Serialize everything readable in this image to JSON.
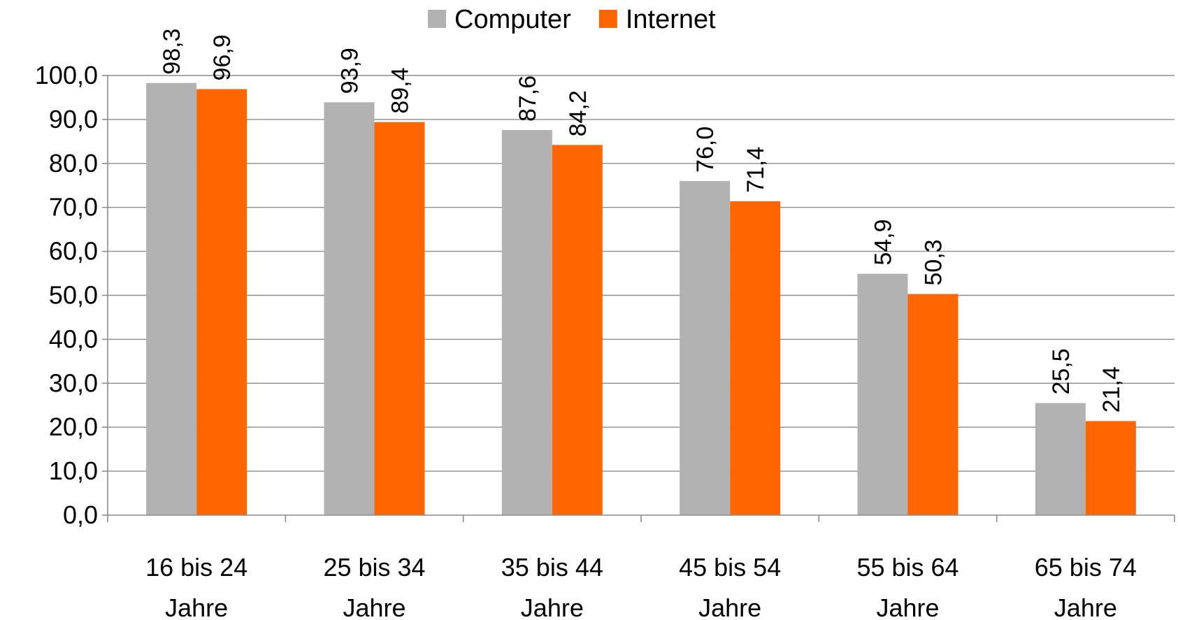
{
  "chart_data": {
    "type": "bar",
    "categories": [
      [
        "16 bis 24",
        "Jahre"
      ],
      [
        "25 bis 34",
        "Jahre"
      ],
      [
        "35 bis 44",
        "Jahre"
      ],
      [
        "45 bis 54",
        "Jahre"
      ],
      [
        "55 bis 64",
        "Jahre"
      ],
      [
        "65 bis 74",
        "Jahre"
      ]
    ],
    "series": [
      {
        "name": "Computer",
        "color": "#b2b2b2",
        "values": [
          98.3,
          93.9,
          87.6,
          76.0,
          54.9,
          25.5
        ],
        "labels": [
          "98,3",
          "93,9",
          "87,6",
          "76,0",
          "54,9",
          "25,5"
        ]
      },
      {
        "name": "Internet",
        "color": "#ff6600",
        "values": [
          96.9,
          89.4,
          84.2,
          71.4,
          50.3,
          21.4
        ],
        "labels": [
          "96,9",
          "89,4",
          "84,2",
          "71,4",
          "50,3",
          "21,4"
        ]
      }
    ],
    "yticks": [
      "0,0",
      "10,0",
      "20,0",
      "30,0",
      "40,0",
      "50,0",
      "60,0",
      "70,0",
      "80,0",
      "90,0",
      "100,0"
    ],
    "ylim": [
      0,
      100
    ],
    "ytick_step": 10,
    "grid": true,
    "legend_position": "top-center",
    "data_labels_rotation": "vertical"
  }
}
